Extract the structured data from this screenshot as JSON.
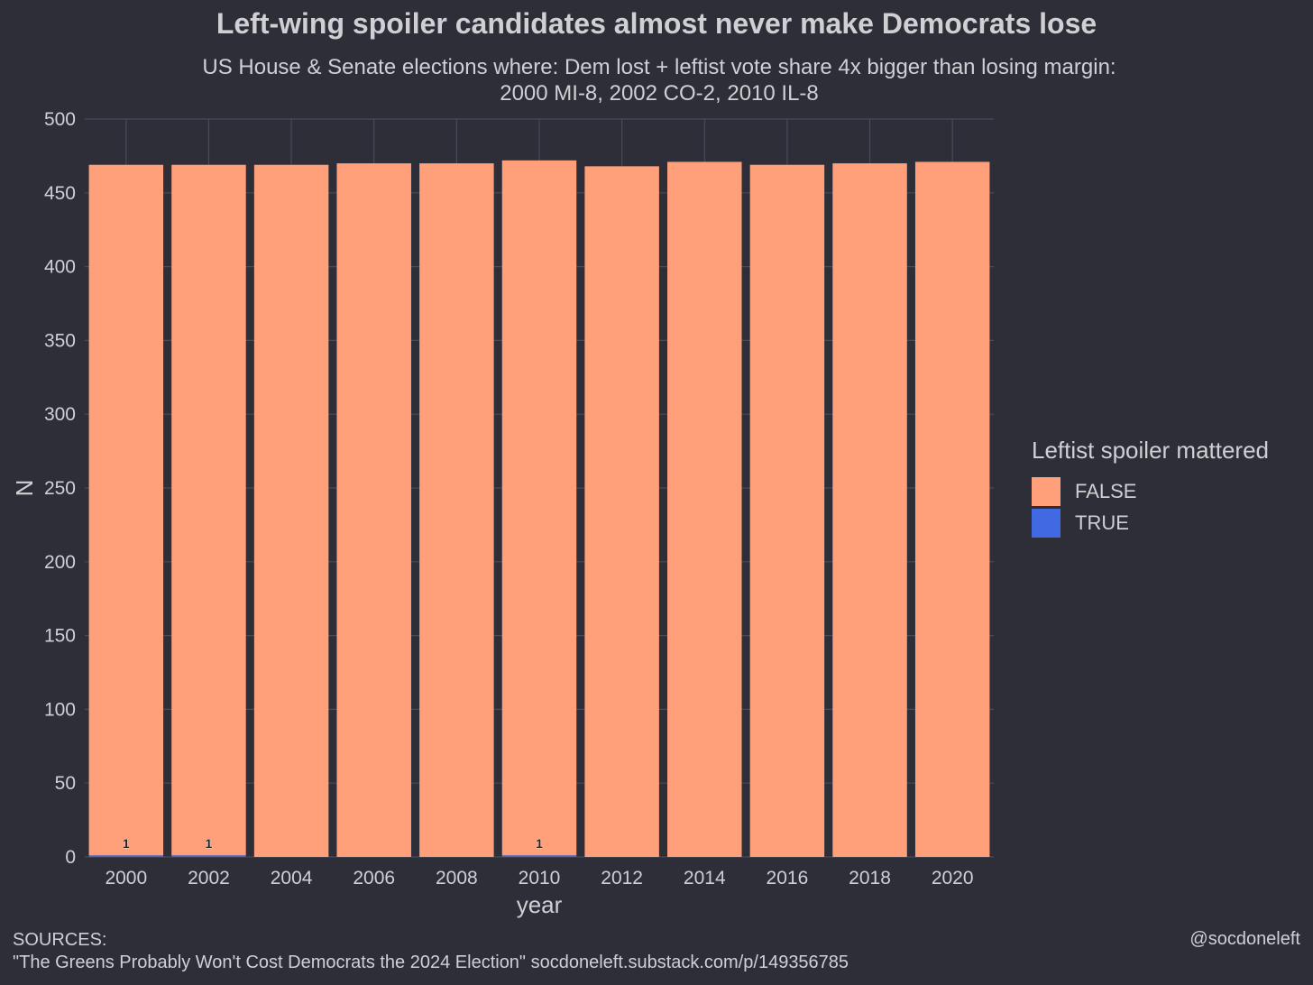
{
  "chart_data": {
    "type": "bar",
    "stacked": true,
    "title": "Left-wing spoiler candidates almost never make Democrats lose",
    "subtitle": [
      "US House & Senate elections where: Dem lost + leftist vote share 4x bigger than losing margin:",
      "2000 MI-8, 2002 CO-2, 2010 IL-8"
    ],
    "xlabel": "year",
    "ylabel": "N",
    "ylim": [
      0,
      500
    ],
    "yticks": [
      0,
      50,
      100,
      150,
      200,
      250,
      300,
      350,
      400,
      450,
      500
    ],
    "categories": [
      "2000",
      "2002",
      "2004",
      "2006",
      "2008",
      "2010",
      "2012",
      "2014",
      "2016",
      "2018",
      "2020"
    ],
    "series": [
      {
        "name": "FALSE",
        "color": "#ffa07a",
        "values": [
          468,
          468,
          469,
          470,
          470,
          471,
          468,
          471,
          469,
          470,
          471
        ]
      },
      {
        "name": "TRUE",
        "color": "#4169e1",
        "values": [
          1,
          1,
          0,
          0,
          0,
          1,
          0,
          0,
          0,
          0,
          0
        ]
      }
    ],
    "data_labels": [
      {
        "category": "2000",
        "text": "1"
      },
      {
        "category": "2002",
        "text": "1"
      },
      {
        "category": "2010",
        "text": "1"
      }
    ],
    "legend": {
      "title": "Leftist spoiler mattered",
      "position": "right"
    },
    "grid": true
  },
  "footer": {
    "sources_heading": "SOURCES:",
    "sources_text": "\"The Greens Probably Won't Cost Democrats the 2024 Election\" socdoneleft.substack.com/p/149356785",
    "handle": "@socdoneleft"
  }
}
